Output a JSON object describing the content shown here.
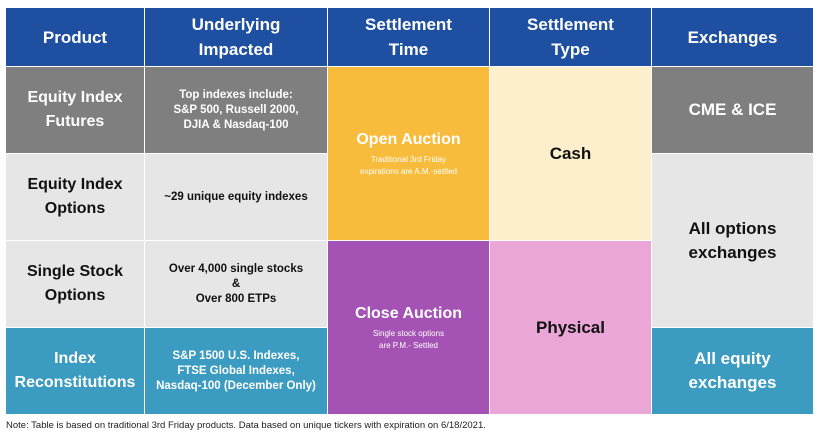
{
  "headers": [
    "Product",
    "Underlying\nImpacted",
    "Settlement\nTime",
    "Settlement\nType",
    "Exchanges"
  ],
  "products": [
    {
      "name": "Equity Index\nFutures",
      "underlying": "Top indexes include:\nS&P 500, Russell 2000,\nDJIA & Nasdaq-100"
    },
    {
      "name": "Equity Index\nOptions",
      "underlying": "~29 unique equity indexes"
    },
    {
      "name": "Single Stock\nOptions",
      "underlying": "Over 4,000 single stocks\n&\nOver 800 ETPs"
    },
    {
      "name": "Index\nReconstitutions",
      "underlying": "S&P 1500 U.S. Indexes,\nFTSE Global Indexes,\nNasdaq-100 (December Only)"
    }
  ],
  "settlement_time": [
    {
      "title": "Open Auction",
      "note": "Traditional 3rd Friday\nexpirations are A.M.-settled"
    },
    {
      "title": "Close Auction",
      "note": "Single stock options\nare P.M.- Settled"
    }
  ],
  "settlement_type": [
    "Cash",
    "Physical"
  ],
  "exchanges": [
    "CME & ICE",
    "All options\nexchanges",
    "All equity\nexchanges"
  ],
  "footnote": "Note: Table is based on traditional 3rd Friday products. Data based on unique tickers with expiration on 6/18/2021.",
  "colors": {
    "header": "#1f4fa0",
    "gray_dark": "#7f7f7f",
    "gray_light": "#e6e6e6",
    "teal": "#3b9bc0",
    "orange": "#f7bc3c",
    "purple": "#a452b4",
    "cream": "#fdefcb",
    "pink": "#eba6d8"
  }
}
